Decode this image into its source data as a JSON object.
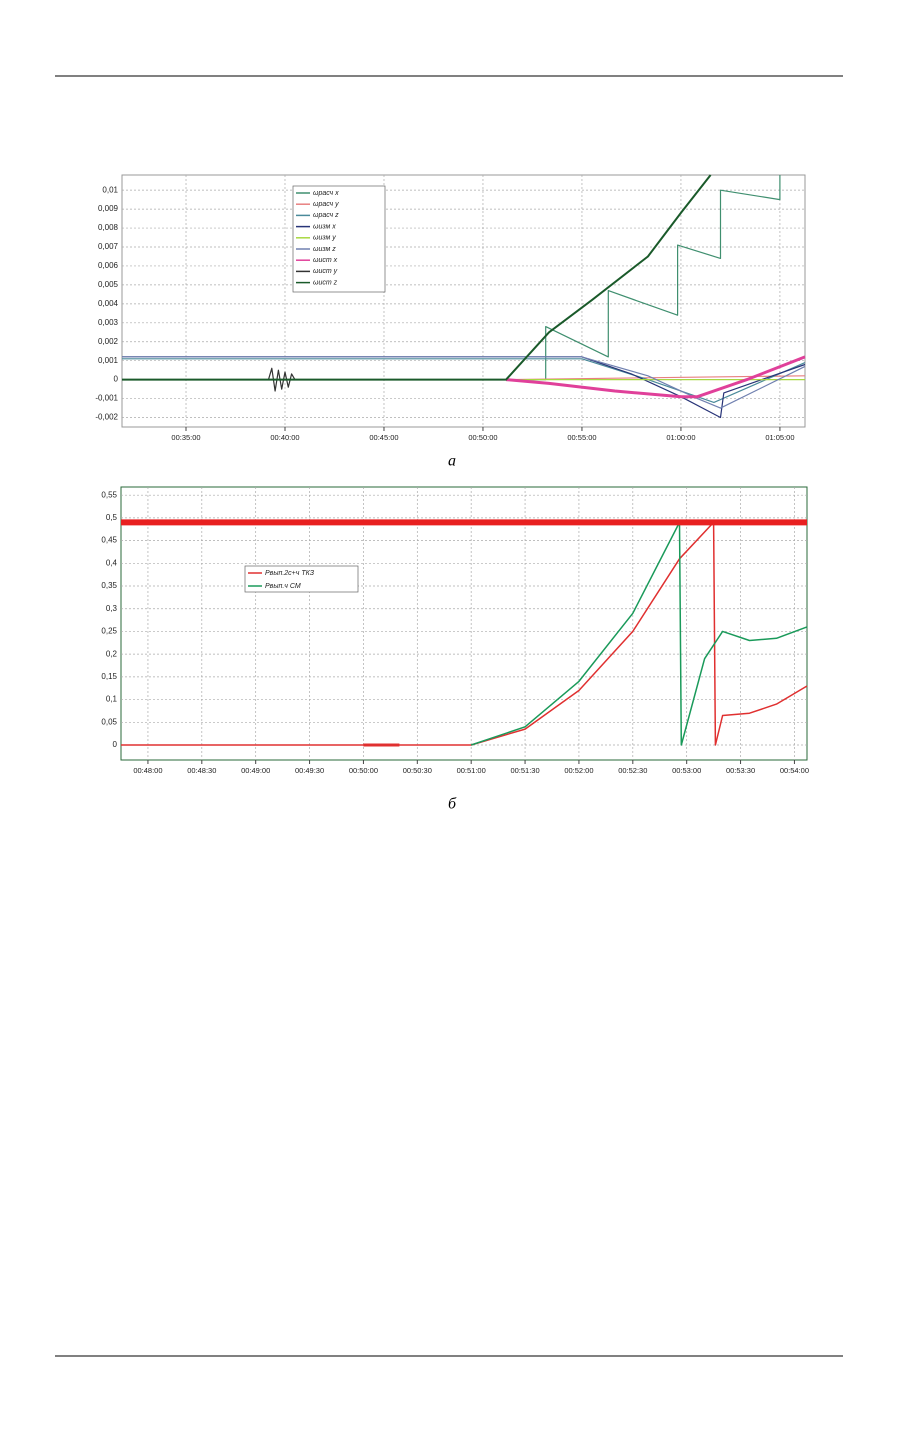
{
  "chart_data": [
    {
      "type": "line",
      "grid": true,
      "xlim": [
        1906,
        3976
      ],
      "ylim": [
        -0.0025,
        0.0108
      ],
      "xticks": [
        {
          "value": 2100,
          "label": "00:35:00"
        },
        {
          "value": 2400,
          "label": "00:40:00"
        },
        {
          "value": 2700,
          "label": "00:45:00"
        },
        {
          "value": 3000,
          "label": "00:50:00"
        },
        {
          "value": 3300,
          "label": "00:55:00"
        },
        {
          "value": 3600,
          "label": "01:00:00"
        },
        {
          "value": 3900,
          "label": "01:05:00"
        }
      ],
      "yticks": [
        {
          "value": 0.01,
          "label": "0,01"
        },
        {
          "value": 0.009,
          "label": "0,009"
        },
        {
          "value": 0.008,
          "label": "0,008"
        },
        {
          "value": 0.007,
          "label": "0,007"
        },
        {
          "value": 0.006,
          "label": "0,006"
        },
        {
          "value": 0.005,
          "label": "0,005"
        },
        {
          "value": 0.004,
          "label": "0,004"
        },
        {
          "value": 0.003,
          "label": "0,003"
        },
        {
          "value": 0.002,
          "label": "0,002"
        },
        {
          "value": 0.001,
          "label": "0,001"
        },
        0,
        {
          "value": -0.001,
          "label": "-0,001"
        },
        {
          "value": -0.002,
          "label": "-0,002"
        }
      ],
      "series": [
        {
          "name": "ωрасч x",
          "color": "#3f8f6f",
          "x": [
            1906,
            3190,
            3190,
            3380,
            3380,
            3590,
            3590,
            3720,
            3720,
            3900,
            3900
          ],
          "values": [
            0,
            0,
            0.0028,
            0.0012,
            0.0047,
            0.0034,
            0.0071,
            0.0064,
            0.01,
            0.0095,
            0.0108
          ]
        },
        {
          "name": "ωрасч y",
          "color": "#e88080",
          "x": [
            3070,
            3976
          ],
          "values": [
            0,
            0.0002
          ]
        },
        {
          "name": "ωрасч z",
          "color": "#4a8a9a",
          "x": [
            1906,
            3300,
            3500,
            3700,
            3976
          ],
          "values": [
            0.0011,
            0.0011,
            0,
            -0.0012,
            0.0009
          ]
        },
        {
          "name": "ωизм x",
          "color": "#283478",
          "x": [
            1906,
            3300,
            3450,
            3600,
            3720,
            3730,
            3976
          ],
          "values": [
            0.0012,
            0.0012,
            0.0003,
            -0.0009,
            -0.002,
            -0.0007,
            0.0008
          ]
        },
        {
          "name": "ωизм y",
          "color": "#a8d840",
          "x": [
            1906,
            3976
          ],
          "values": [
            0,
            0
          ]
        },
        {
          "name": "ωизм z",
          "color": "#7080b0",
          "x": [
            1906,
            3300,
            3500,
            3650,
            3720,
            3976
          ],
          "values": [
            0.0012,
            0.0012,
            0.0002,
            -0.001,
            -0.0015,
            0.0007
          ]
        },
        {
          "name": "ωист x",
          "color": "#e0409a",
          "width": 3,
          "x": [
            3070,
            3200,
            3400,
            3600,
            3650,
            3800,
            3976
          ],
          "values": [
            0,
            -0.0002,
            -0.0006,
            -0.0009,
            -0.0009,
            0,
            0.0012
          ]
        },
        {
          "name": "ωист y",
          "color": "#333333",
          "x": [
            1906,
            2350,
            2360,
            2370,
            2380,
            2390,
            2400,
            2410,
            2420,
            2430,
            2900
          ],
          "values": [
            0,
            0,
            0.0006,
            -0.0006,
            0.0005,
            -0.0005,
            0.0004,
            -0.0004,
            0.0003,
            0,
            0
          ]
        },
        {
          "name": "ωист z",
          "color": "#1a5a2a",
          "width": 2,
          "x": [
            1906,
            3070,
            3200,
            3330,
            3500,
            3600,
            3690
          ],
          "values": [
            0,
            0,
            0.0025,
            0.0042,
            0.0065,
            0.0088,
            0.0108
          ]
        }
      ]
    },
    {
      "type": "line",
      "grid": true,
      "xlim": [
        2865,
        3247
      ],
      "ylim": [
        -0.033,
        0.568
      ],
      "xticks": [
        {
          "value": 2880,
          "label": "00:48:00"
        },
        {
          "value": 2910,
          "label": "00:48:30"
        },
        {
          "value": 2940,
          "label": "00:49:00"
        },
        {
          "value": 2970,
          "label": "00:49:30"
        },
        {
          "value": 3000,
          "label": "00:50:00"
        },
        {
          "value": 3030,
          "label": "00:50:30"
        },
        {
          "value": 3060,
          "label": "00:51:00"
        },
        {
          "value": 3090,
          "label": "00:51:30"
        },
        {
          "value": 3120,
          "label": "00:52:00"
        },
        {
          "value": 3150,
          "label": "00:52:30"
        },
        {
          "value": 3180,
          "label": "00:53:00"
        },
        {
          "value": 3210,
          "label": "00:53:30"
        },
        {
          "value": 3240,
          "label": "00:54:00"
        }
      ],
      "yticks": [
        {
          "value": 0.55,
          "label": "0,55"
        },
        {
          "value": 0.5,
          "label": "0,5"
        },
        {
          "value": 0.45,
          "label": "0,45"
        },
        {
          "value": 0.4,
          "label": "0,4"
        },
        {
          "value": 0.35,
          "label": "0,35"
        },
        {
          "value": 0.3,
          "label": "0,3"
        },
        {
          "value": 0.25,
          "label": "0,25"
        },
        {
          "value": 0.2,
          "label": "0,2"
        },
        {
          "value": 0.15,
          "label": "0,15"
        },
        {
          "value": 0.1,
          "label": "0,1"
        },
        {
          "value": 0.05,
          "label": "0,05"
        },
        0
      ],
      "series": [
        {
          "name": "Pвып.2с+ч ТКЗ",
          "color": "#e03030",
          "width": 1.5,
          "x": [
            2865,
            3060,
            3090,
            3120,
            3150,
            3176,
            3195,
            3196,
            3200,
            3215,
            3230,
            3247
          ],
          "values": [
            0,
            0,
            0.035,
            0.12,
            0.25,
            0.41,
            0.49,
            0,
            0.065,
            0.07,
            0.09,
            0.13
          ]
        },
        {
          "name": "Pвып.ч СМ",
          "color": "#1a9a5a",
          "width": 1.5,
          "x": [
            3060,
            3090,
            3120,
            3150,
            3176,
            3177,
            3190,
            3200,
            3215,
            3230,
            3247
          ],
          "values": [
            0,
            0.04,
            0.14,
            0.29,
            0.49,
            0,
            0.19,
            0.25,
            0.23,
            0.235,
            0.26
          ]
        },
        {
          "color": "#e82020",
          "width": 6,
          "x": [
            2865,
            3247
          ],
          "values": [
            0.49,
            0.49
          ]
        },
        {
          "color": "#e03030",
          "width": 3,
          "x": [
            3000,
            3020
          ],
          "values": [
            0,
            0
          ]
        }
      ]
    }
  ],
  "figure_labels": [
    "а",
    "б"
  ]
}
